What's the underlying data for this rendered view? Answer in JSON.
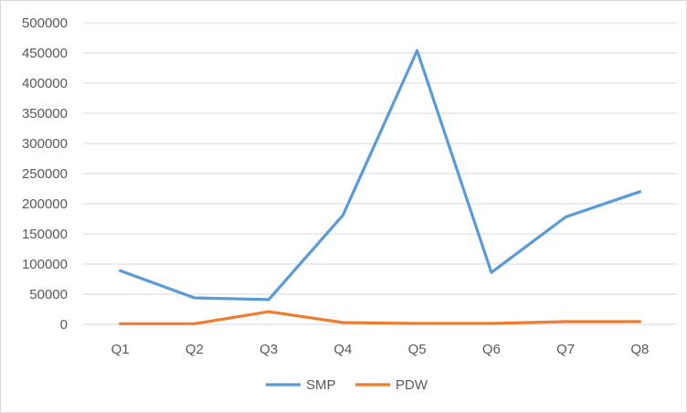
{
  "chart_data": {
    "type": "line",
    "title": "",
    "xlabel": "",
    "ylabel": "",
    "categories": [
      "Q1",
      "Q2",
      "Q3",
      "Q4",
      "Q5",
      "Q6",
      "Q7",
      "Q8"
    ],
    "series": [
      {
        "name": "SMP",
        "color": "#5b9bd5",
        "values": [
          89000,
          44000,
          41000,
          181000,
          454000,
          86000,
          178000,
          220000
        ]
      },
      {
        "name": "PDW",
        "color": "#ed7d31",
        "values": [
          1000,
          1000,
          21000,
          3000,
          1500,
          1500,
          4500,
          4500
        ]
      }
    ],
    "ylim": [
      0,
      500000
    ],
    "yticks": [
      "0",
      "50000",
      "100000",
      "150000",
      "200000",
      "250000",
      "300000",
      "350000",
      "400000",
      "450000",
      "500000"
    ],
    "grid": true,
    "legend_position": "bottom"
  }
}
